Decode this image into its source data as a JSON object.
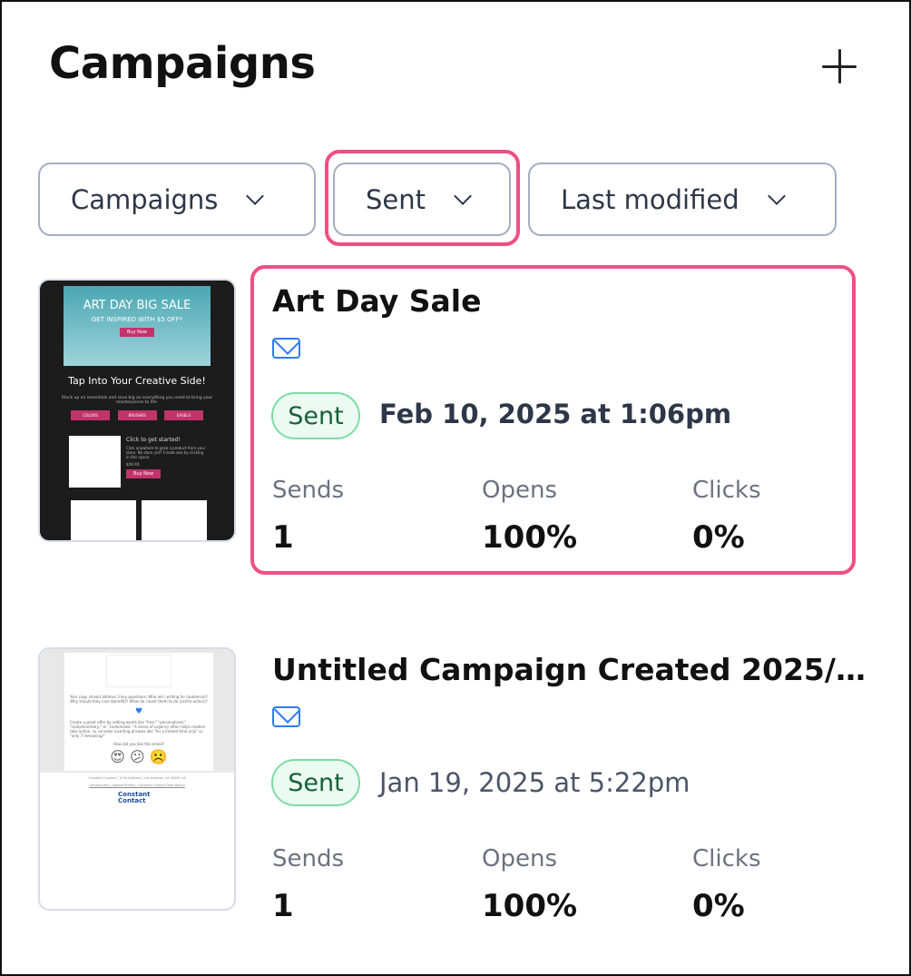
{
  "header": {
    "title": "Campaigns",
    "add_icon": "plus-icon"
  },
  "filters": [
    {
      "label": "Campaigns",
      "icon": "chevron-down-icon"
    },
    {
      "label": "Sent",
      "icon": "chevron-down-icon",
      "highlighted": true
    },
    {
      "label": "Last modified",
      "icon": "chevron-down-icon"
    }
  ],
  "highlight_color": "#ee4f85",
  "campaigns": [
    {
      "title": "Art Day Sale",
      "type_icon": "mail-icon",
      "status": "Sent",
      "date": "Feb 10, 2025 at 1:06pm",
      "highlighted": true,
      "stats": {
        "sends_label": "Sends",
        "sends": "1",
        "opens_label": "Opens",
        "opens": "100%",
        "clicks_label": "Clicks",
        "clicks": "0%"
      },
      "thumbnail": {
        "hero": "ART DAY BIG SALE",
        "hero_sub": "GET INSPIRED WITH $5 OFF*",
        "hero_button": "Buy Now",
        "heading": "Tap Into Your Creative Side!",
        "body": "Stock up on essentials and save big on everything you need to bring your masterpieces to life.",
        "pills": [
          "COLORS",
          "BRUSHES",
          "EASELS"
        ],
        "cta_title": "Click to get started!",
        "cta_body": "Click anywhere to grab a product from your store. No store yet? Create one by clicking in this space.",
        "price": "$XX.XX",
        "cta_button": "Buy Now"
      }
    },
    {
      "title": "Untitled Campaign Created 2025/…",
      "type_icon": "mail-icon",
      "status": "Sent",
      "date": "Jan 19, 2025 at 5:22pm",
      "stats": {
        "sends_label": "Sends",
        "sends": "1",
        "opens_label": "Opens",
        "opens": "100%",
        "clicks_label": "Clicks",
        "clicks": "0%"
      },
      "thumbnail": {
        "body1": "Your copy should address 3 key questions: Who am I writing for (audience)? Why should they care (benefit)? What do I want them to do (call-to-action)?",
        "body2": "Create a great offer by adding words like \"free,\" \"personalized,\" \"complimentary,\" or \"customized.\" A sense of urgency often helps readers take action, so consider inserting phrases like \"for a limited time only\" or \"only 7 remaining!\"",
        "rating_prompt": "How did you like this email?",
        "footer": "Constant Contact | 1234 Address | Los Angeles, CA 90067 US",
        "links": "Unsubscribe | Update Profile | Constant Contact Data Notice",
        "logo": "Constant Contact"
      }
    }
  ]
}
